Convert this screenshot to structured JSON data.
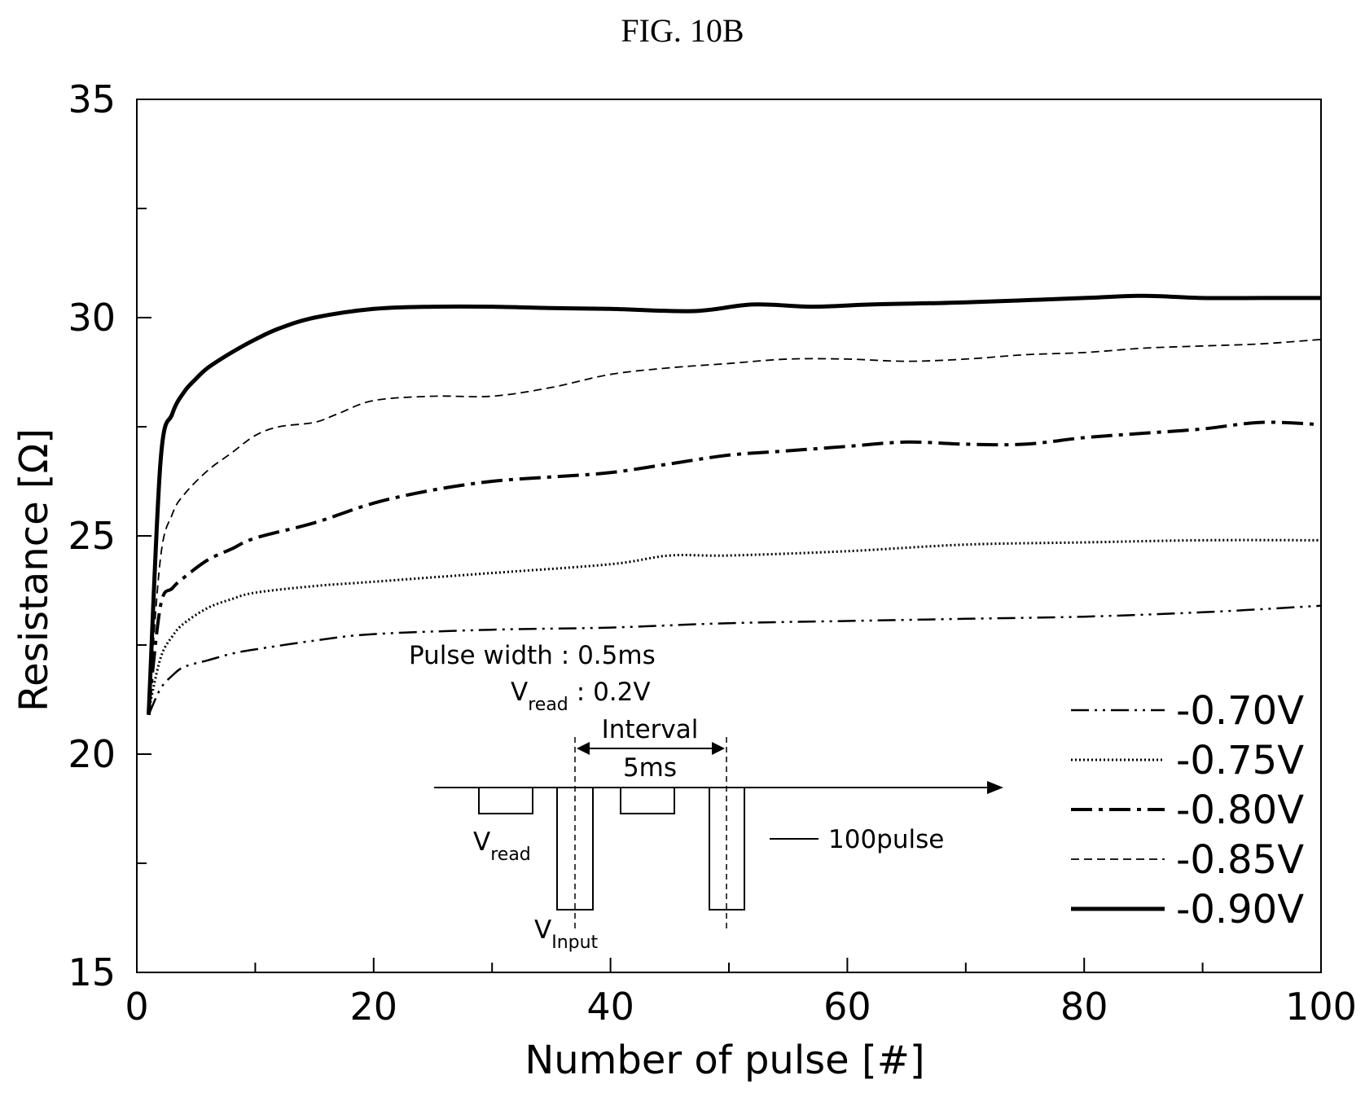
{
  "figure_title": "FIG. 10B",
  "chart_data": {
    "type": "line",
    "title": "",
    "xlabel": "Number of pulse [#]",
    "ylabel": "Resistance [Ω]",
    "xlim": [
      0,
      100
    ],
    "ylim": [
      15,
      35
    ],
    "x_ticks": [
      0,
      20,
      40,
      60,
      80,
      100
    ],
    "y_ticks": [
      15,
      20,
      25,
      30,
      35
    ],
    "grid": false,
    "legend_position": "bottom-right",
    "series": [
      {
        "name": "-0.70V",
        "style": "dash-dot-dot",
        "x": [
          1,
          2,
          3,
          4,
          6,
          8,
          10,
          15,
          20,
          30,
          40,
          50,
          60,
          70,
          80,
          90,
          100
        ],
        "y": [
          20.9,
          21.5,
          21.8,
          22.0,
          22.15,
          22.3,
          22.4,
          22.6,
          22.75,
          22.85,
          22.9,
          23.0,
          23.05,
          23.1,
          23.15,
          23.25,
          23.4
        ]
      },
      {
        "name": "-0.75V",
        "style": "dotted",
        "x": [
          1,
          2,
          3,
          4,
          6,
          8,
          10,
          15,
          20,
          30,
          40,
          45,
          50,
          60,
          70,
          80,
          90,
          100
        ],
        "y": [
          21.0,
          22.2,
          22.7,
          23.0,
          23.35,
          23.55,
          23.7,
          23.85,
          23.95,
          24.15,
          24.35,
          24.55,
          24.55,
          24.65,
          24.8,
          24.85,
          24.9,
          24.9
        ]
      },
      {
        "name": "-0.80V",
        "style": "long-dash-dot",
        "x": [
          1,
          2,
          3,
          4,
          6,
          8,
          10,
          15,
          20,
          25,
          30,
          35,
          40,
          45,
          50,
          55,
          60,
          65,
          70,
          75,
          80,
          85,
          90,
          95,
          100
        ],
        "y": [
          21.0,
          23.4,
          23.8,
          24.05,
          24.45,
          24.7,
          24.95,
          25.3,
          25.75,
          26.05,
          26.25,
          26.35,
          26.45,
          26.65,
          26.85,
          26.95,
          27.05,
          27.15,
          27.1,
          27.1,
          27.25,
          27.35,
          27.45,
          27.6,
          27.55
        ]
      },
      {
        "name": "-0.85V",
        "style": "dashed",
        "x": [
          1,
          2,
          3,
          4,
          6,
          8,
          10,
          12,
          15,
          17,
          20,
          25,
          30,
          35,
          40,
          45,
          50,
          55,
          60,
          65,
          70,
          75,
          80,
          85,
          90,
          95,
          100
        ],
        "y": [
          21.0,
          24.5,
          25.5,
          25.95,
          26.5,
          26.9,
          27.3,
          27.5,
          27.6,
          27.8,
          28.1,
          28.2,
          28.2,
          28.4,
          28.7,
          28.85,
          28.95,
          29.05,
          29.05,
          29.0,
          29.05,
          29.15,
          29.2,
          29.3,
          29.35,
          29.4,
          29.5
        ]
      },
      {
        "name": "-0.90V",
        "style": "solid-thick",
        "x": [
          1,
          2,
          3,
          4,
          5,
          6,
          8,
          10,
          12,
          15,
          20,
          25,
          30,
          35,
          40,
          47,
          52,
          57,
          62,
          70,
          80,
          85,
          90,
          95,
          100
        ],
        "y": [
          20.9,
          26.7,
          27.8,
          28.3,
          28.6,
          28.85,
          29.2,
          29.5,
          29.75,
          30.0,
          30.2,
          30.25,
          30.25,
          30.22,
          30.2,
          30.15,
          30.3,
          30.25,
          30.3,
          30.35,
          30.45,
          30.5,
          30.45,
          30.45,
          30.45
        ]
      }
    ],
    "inset": {
      "pulse_width_label": "Pulse width : 0.5ms",
      "vread_label_main": "V",
      "vread_label_sub": "read",
      "vread_value": ": 0.2V",
      "interval_label": "Interval",
      "interval_value": "5ms",
      "vread_pulse_main": "V",
      "vread_pulse_sub": "read",
      "vinput_main": "V",
      "vinput_sub": "Input",
      "count_label": "100pulse"
    }
  }
}
